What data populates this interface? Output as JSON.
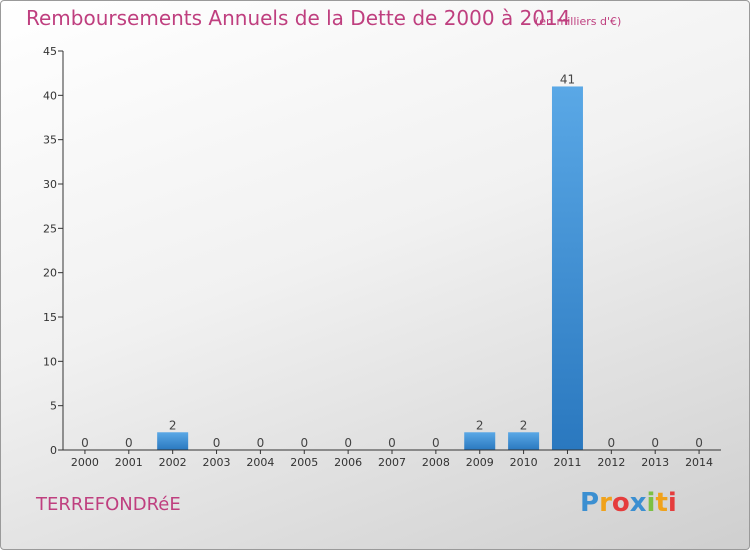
{
  "title": "Remboursements Annuels de la Dette de 2000 à 2014",
  "unit_note": "(en milliers d'€)",
  "town": "TERREFONDRéE",
  "logo": {
    "letters": [
      "P",
      "r",
      "o",
      "x",
      "i",
      "t",
      "i"
    ],
    "colors": [
      "#3b8fd1",
      "#f0a21b",
      "#e53d3d",
      "#3b8fd1",
      "#7cc043",
      "#f0a21b",
      "#e53d3d"
    ]
  },
  "colors": {
    "accent": "#bf3f7f",
    "bar_top": "#5aa8e6",
    "bar_bottom": "#2a78bf",
    "axis": "#333333"
  },
  "chart_data": {
    "type": "bar",
    "categories": [
      "2000",
      "2001",
      "2002",
      "2003",
      "2004",
      "2005",
      "2006",
      "2007",
      "2008",
      "2009",
      "2010",
      "2011",
      "2012",
      "2013",
      "2014"
    ],
    "values": [
      0,
      0,
      2,
      0,
      0,
      0,
      0,
      0,
      0,
      2,
      2,
      41,
      0,
      0,
      0
    ],
    "data_labels": [
      "0",
      "0",
      "2",
      "0",
      "0",
      "0",
      "0",
      "0",
      "0",
      "2",
      "2",
      "41",
      "0",
      "0",
      "0"
    ],
    "title": "Remboursements Annuels de la Dette de 2000 à 2014",
    "ylim": [
      0,
      45
    ],
    "yticks": [
      0,
      5,
      10,
      15,
      20,
      25,
      30,
      35,
      40,
      45
    ],
    "grid": false
  }
}
